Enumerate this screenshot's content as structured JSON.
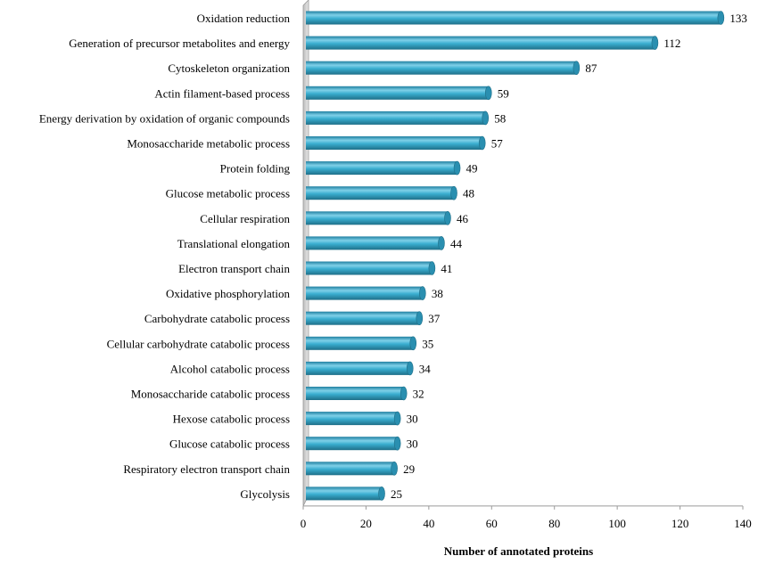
{
  "chart_data": {
    "type": "bar",
    "orientation": "horizontal",
    "categories": [
      "Oxidation reduction",
      "Generation of precursor metabolites and energy",
      "Cytoskeleton organization",
      "Actin filament-based process",
      "Energy derivation by oxidation of organic compounds",
      "Monosaccharide metabolic process",
      "Protein folding",
      "Glucose metabolic process",
      "Cellular respiration",
      "Translational elongation",
      "Electron transport chain",
      "Oxidative phosphorylation",
      "Carbohydrate catabolic process",
      "Cellular carbohydrate catabolic process",
      "Alcohol catabolic process",
      "Monosaccharide catabolic process",
      "Hexose catabolic process",
      "Glucose catabolic process",
      "Respiratory electron transport chain",
      "Glycolysis"
    ],
    "values": [
      133,
      112,
      87,
      59,
      58,
      57,
      49,
      48,
      46,
      44,
      41,
      38,
      37,
      35,
      34,
      32,
      30,
      30,
      29,
      25
    ],
    "data_labels": [
      "133",
      "112",
      "87",
      "59",
      "58",
      "57",
      "49",
      "48",
      "46",
      "44",
      "41",
      "38",
      "37",
      "35",
      "34",
      "32",
      "30",
      "30",
      "29",
      "25"
    ],
    "xlabel": "Number of annotated proteins",
    "ylabel": "",
    "xlim": [
      0,
      140
    ],
    "xticks": [
      "0",
      "20",
      "40",
      "60",
      "80",
      "100",
      "120",
      "140"
    ],
    "grid": false,
    "legend": "none",
    "bar_color": "#3aaed0",
    "bar_dark_color": "#1f6f88",
    "bar_light_color": "#8fd6ea",
    "wall_color": "#d0d0d0"
  }
}
